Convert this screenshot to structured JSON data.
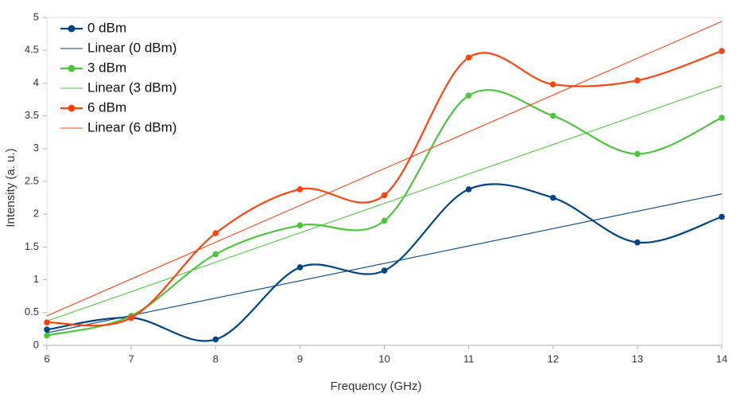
{
  "chart_data": {
    "type": "line",
    "x_label": "Frequency (GHz)",
    "y_label": "Intensity (a. u.)",
    "xlim": [
      6,
      14
    ],
    "xticks": [
      6,
      7,
      8,
      9,
      10,
      11,
      12,
      13,
      14
    ],
    "ylim": [
      0,
      5
    ],
    "yticks": [
      0,
      0.5,
      1,
      1.5,
      2,
      2.5,
      3,
      3.5,
      4,
      4.5,
      5
    ],
    "legend": "top-left",
    "smooth": true,
    "series": [
      {
        "name": "0 dBm",
        "color": "#004586",
        "markers": true,
        "x": [
          6,
          7,
          8,
          9,
          10,
          11,
          12,
          13,
          14
        ],
        "values": [
          0.24,
          0.42,
          0.09,
          1.19,
          1.14,
          2.38,
          2.25,
          1.57,
          1.96
        ]
      },
      {
        "name": "Linear (0 dBm)",
        "color": "#004586",
        "markers": false,
        "x": [
          6,
          14
        ],
        "values": [
          0.19,
          2.31
        ]
      },
      {
        "name": "3 dBm",
        "color": "#4cc53c",
        "markers": true,
        "x": [
          6,
          7,
          8,
          9,
          10,
          11,
          12,
          13,
          14
        ],
        "values": [
          0.15,
          0.45,
          1.39,
          1.83,
          1.9,
          3.81,
          3.5,
          2.92,
          3.47
        ]
      },
      {
        "name": "Linear (3 dBm)",
        "color": "#4cc53c",
        "markers": false,
        "x": [
          6,
          14
        ],
        "values": [
          0.37,
          3.96
        ]
      },
      {
        "name": "6 dBm",
        "color": "#ff420e",
        "markers": true,
        "x": [
          6,
          7,
          8,
          9,
          10,
          11,
          12,
          13,
          14
        ],
        "values": [
          0.35,
          0.42,
          1.71,
          2.38,
          2.29,
          4.39,
          3.98,
          4.04,
          4.49
        ]
      },
      {
        "name": "Linear (6 dBm)",
        "color": "#ff420e",
        "markers": false,
        "x": [
          6,
          14
        ],
        "values": [
          0.45,
          4.94
        ]
      }
    ]
  }
}
